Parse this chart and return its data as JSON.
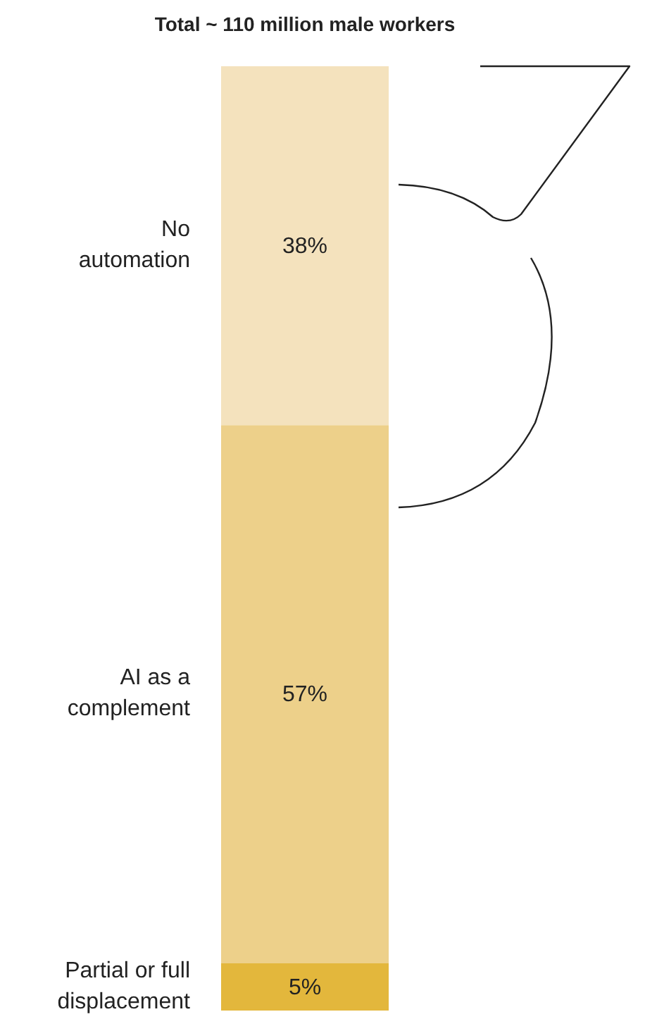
{
  "chart_data": {
    "type": "bar",
    "title": "Total ~ 110 million male workers",
    "stacked": true,
    "categories": [
      null
    ],
    "series": [
      {
        "name": "Partial or full displacement",
        "color": "#e3b73c",
        "values": [
          5
        ],
        "value_labels": [
          "5%"
        ]
      },
      {
        "name": "AI as a complement",
        "color": "#edd08a",
        "values": [
          57
        ],
        "value_labels": [
          "57%"
        ]
      },
      {
        "name": "No automation",
        "color": "#f4e2bd",
        "values": [
          38
        ],
        "value_labels": [
          "38%"
        ]
      }
    ]
  }
}
